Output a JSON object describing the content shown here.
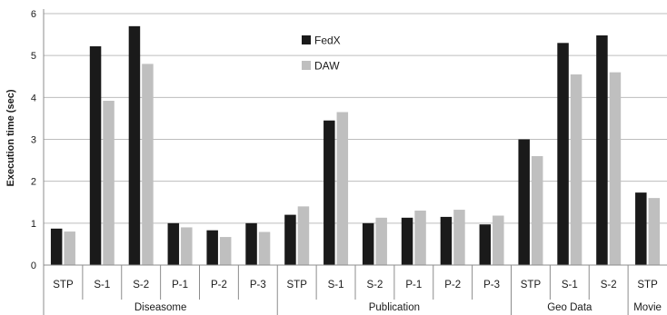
{
  "chart_data": {
    "type": "bar",
    "ylabel": "Execution time (sec)",
    "ylim": [
      0,
      6
    ],
    "yticks": [
      0,
      1,
      2,
      3,
      4,
      5,
      6
    ],
    "grid": true,
    "legend_position": "top-center",
    "groups": [
      {
        "name": "Diseasome",
        "categories": [
          "STP",
          "S-1",
          "S-2",
          "P-1",
          "P-2",
          "P-3"
        ]
      },
      {
        "name": "Publication",
        "categories": [
          "STP",
          "S-1",
          "S-2",
          "P-1",
          "P-2",
          "P-3"
        ]
      },
      {
        "name": "Geo Data",
        "categories": [
          "STP",
          "S-1",
          "S-2"
        ]
      },
      {
        "name": "Movie",
        "categories": [
          "STP"
        ]
      }
    ],
    "series": [
      {
        "name": "FedX",
        "color": "#1a1a1a",
        "values": [
          0.87,
          5.22,
          5.7,
          1.0,
          0.83,
          1.0,
          1.2,
          3.45,
          1.0,
          1.13,
          1.15,
          0.97,
          3.0,
          5.3,
          5.48,
          1.73
        ]
      },
      {
        "name": "DAW",
        "color": "#bfbfbf",
        "values": [
          0.8,
          3.92,
          4.8,
          0.9,
          0.67,
          0.79,
          1.4,
          3.65,
          1.13,
          1.3,
          1.32,
          1.18,
          2.6,
          4.55,
          4.6,
          1.6
        ]
      }
    ]
  }
}
